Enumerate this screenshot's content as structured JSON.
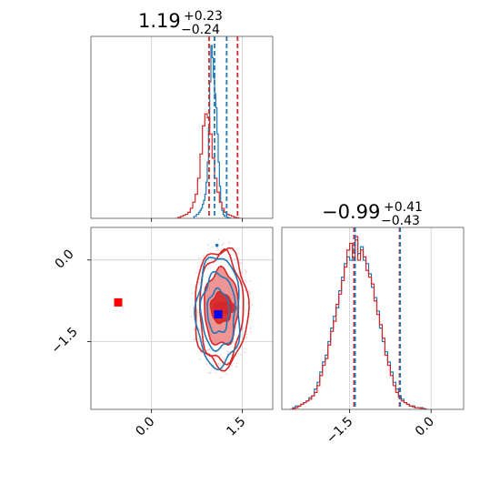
{
  "colors": {
    "red": "#d62728",
    "blue": "#1f77b4",
    "fill_dark": "#d62728",
    "fill_light": "#ee8a8a",
    "grid": "#cccccc",
    "marker_red": "#ff0000",
    "marker_blue": "#0000ff"
  },
  "chart_data": [
    {
      "type": "histogram",
      "panel": "top-left",
      "title": {
        "value": "1.19",
        "plus": "+0.23",
        "minus": "−0.24"
      },
      "x_range": [
        -1.0,
        2.0
      ],
      "grid_x": [
        0.0,
        1.5
      ],
      "x_ticks_labels_shown": false,
      "quantile_lines": {
        "red": [
          0.95,
          1.42
        ],
        "blue": [
          1.04,
          1.24
        ]
      },
      "series": [
        {
          "name": "",
          "color": "blue",
          "bin_start": 0.7,
          "bin_width": 0.02,
          "values": [
            0.01,
            0.01,
            0.02,
            0.02,
            0.03,
            0.04,
            0.05,
            0.07,
            0.09,
            0.12,
            0.18,
            0.28,
            0.45,
            0.68,
            0.86,
            0.8,
            0.7,
            0.62,
            0.55,
            0.42,
            0.28,
            0.16,
            0.08,
            0.04,
            0.02,
            0.01,
            0.01,
            0.005,
            0.003,
            0.002,
            0.0
          ]
        },
        {
          "name": "",
          "color": "red",
          "bin_start": 0.4,
          "bin_width": 0.04,
          "values": [
            0.0,
            0.005,
            0.01,
            0.015,
            0.02,
            0.03,
            0.05,
            0.08,
            0.12,
            0.2,
            0.32,
            0.46,
            0.52,
            0.5,
            0.42,
            0.3,
            0.2,
            0.13,
            0.08,
            0.05,
            0.03,
            0.02,
            0.015,
            0.01,
            0.005,
            0.003,
            0.0
          ]
        }
      ]
    },
    {
      "type": "contour",
      "panel": "bottom-left",
      "x_range": [
        -1.0,
        2.0
      ],
      "y_range": [
        -2.75,
        0.6
      ],
      "x_ticks": [
        0.0,
        1.5
      ],
      "x_tick_labels": [
        "0.0",
        "1.5"
      ],
      "y_ticks": [
        0.0,
        -1.5
      ],
      "y_tick_labels": [
        "0.0",
        "−1.5"
      ],
      "red_center": [
        1.15,
        -0.88
      ],
      "red_contours": [
        {
          "rx": 0.17,
          "ry": 0.28,
          "fill": "fill_dark"
        },
        {
          "rx": 0.28,
          "ry": 0.7,
          "fill": "fill_light"
        },
        {
          "rx": 0.36,
          "ry": 1.0,
          "fill": "none"
        },
        {
          "rx": 0.44,
          "ry": 1.08,
          "fill": "none"
        }
      ],
      "blue_center": [
        1.1,
        -0.95
      ],
      "blue_contours": [
        {
          "rx": 0.18,
          "ry": 0.4
        },
        {
          "rx": 0.28,
          "ry": 0.7
        },
        {
          "rx": 0.36,
          "ry": 1.02
        }
      ],
      "markers": [
        {
          "color": "marker_red",
          "x": -0.55,
          "y": -0.78
        },
        {
          "color": "marker_blue",
          "x": 1.1,
          "y": -1.0
        }
      ],
      "outlier_point": {
        "color": "blue",
        "x": 1.08,
        "y": 0.27
      }
    },
    {
      "type": "histogram",
      "panel": "bottom-right",
      "title": {
        "value": "−0.99",
        "plus": "+0.41",
        "minus": "−0.43"
      },
      "x_range": [
        -2.75,
        0.6
      ],
      "grid_x": [
        -1.5,
        0.0
      ],
      "x_ticks": [
        -1.5,
        0.0
      ],
      "x_tick_labels": [
        "−1.5",
        "0.0"
      ],
      "quantile_lines": {
        "red": [
          -1.42,
          -0.58
        ],
        "blue": [
          -1.4,
          -0.57
        ]
      },
      "series": [
        {
          "name": "",
          "color": "blue",
          "bin_start": -2.6,
          "bin_width": 0.05,
          "values": [
            0.0,
            0.01,
            0.02,
            0.02,
            0.03,
            0.04,
            0.05,
            0.07,
            0.08,
            0.12,
            0.16,
            0.22,
            0.28,
            0.32,
            0.4,
            0.48,
            0.55,
            0.6,
            0.7,
            0.78,
            0.86,
            0.9,
            0.88,
            0.95,
            1.0,
            0.92,
            0.96,
            0.88,
            0.86,
            0.8,
            0.72,
            0.66,
            0.58,
            0.48,
            0.4,
            0.34,
            0.28,
            0.22,
            0.16,
            0.12,
            0.08,
            0.06,
            0.04,
            0.03,
            0.02,
            0.02,
            0.01,
            0.01,
            0.01,
            0.005,
            0.0
          ]
        },
        {
          "name": "",
          "color": "red",
          "bin_start": -2.6,
          "bin_width": 0.05,
          "values": [
            0.0,
            0.005,
            0.01,
            0.02,
            0.03,
            0.04,
            0.05,
            0.06,
            0.08,
            0.1,
            0.14,
            0.2,
            0.26,
            0.3,
            0.38,
            0.46,
            0.52,
            0.62,
            0.68,
            0.76,
            0.84,
            0.94,
            0.98,
            0.9,
            1.02,
            0.88,
            0.94,
            0.9,
            0.82,
            0.78,
            0.74,
            0.64,
            0.56,
            0.5,
            0.42,
            0.32,
            0.26,
            0.2,
            0.14,
            0.1,
            0.07,
            0.05,
            0.04,
            0.03,
            0.02,
            0.015,
            0.01,
            0.01,
            0.005,
            0.003,
            0.0
          ]
        }
      ]
    }
  ]
}
